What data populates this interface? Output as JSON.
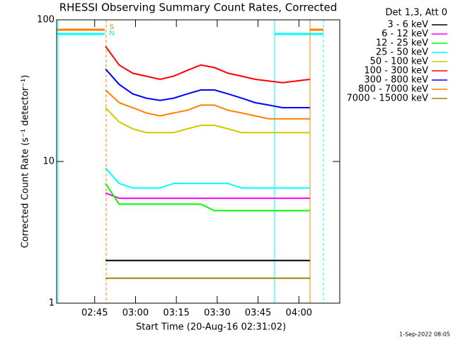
{
  "chart_data": {
    "type": "line",
    "title": "RHESSI Observing Summary Count Rates, Corrected",
    "x_label": "Start Time (20-Aug-16 02:31:02)",
    "y_label": "Corrected Count Rate (s⁻¹ detector⁻¹)",
    "legend_title": "Det 1,3, Att 0",
    "footer": "1-Sep-2022 08:05",
    "log_y": true,
    "xlim": [
      151.03,
      255
    ],
    "ylim": [
      1,
      100
    ],
    "yticks": [
      1,
      10,
      100
    ],
    "xticks": [
      {
        "value": 165,
        "label": "02:45"
      },
      {
        "value": 180,
        "label": "03:00"
      },
      {
        "value": 195,
        "label": "03:15"
      },
      {
        "value": 210,
        "label": "03:30"
      },
      {
        "value": 225,
        "label": "03:45"
      },
      {
        "value": 240,
        "label": "04:00"
      }
    ],
    "flags": [
      {
        "label": "S",
        "color": "#ff8000"
      },
      {
        "label": "N",
        "color": "#00ffff"
      }
    ],
    "x": [
      169,
      174,
      179,
      184,
      189,
      194,
      199,
      204,
      209,
      214,
      219,
      224,
      229,
      234,
      239,
      244
    ],
    "series": [
      {
        "name": "3 - 6 keV",
        "color": "#000000",
        "values": [
          2,
          2,
          2,
          2,
          2,
          2,
          2,
          2,
          2,
          2,
          2,
          2,
          2,
          2,
          2,
          2
        ]
      },
      {
        "name": "6 - 12 keV",
        "color": "#ff00ff",
        "values": [
          6,
          5.5,
          5.5,
          5.5,
          5.5,
          5.5,
          5.5,
          5.5,
          5.5,
          5.5,
          5.5,
          5.5,
          5.5,
          5.5,
          5.5,
          5.5
        ]
      },
      {
        "name": "12 - 25 keV",
        "color": "#00ff00",
        "values": [
          7,
          5,
          5,
          5,
          5,
          5,
          5,
          5,
          4.5,
          4.5,
          4.5,
          4.5,
          4.5,
          4.5,
          4.5,
          4.5
        ]
      },
      {
        "name": "25 - 50 keV",
        "color": "#00ffff",
        "values": [
          9,
          7,
          6.5,
          6.5,
          6.5,
          7,
          7,
          7,
          7,
          7,
          6.5,
          6.5,
          6.5,
          6.5,
          6.5,
          6.5
        ]
      },
      {
        "name": "50 - 100 keV",
        "color": "#cccc00",
        "values": [
          24,
          19,
          17,
          16,
          16,
          16,
          17,
          18,
          18,
          17,
          16,
          16,
          16,
          16,
          16,
          16
        ]
      },
      {
        "name": "100 - 300 keV",
        "color": "#ff0000",
        "values": [
          65,
          48,
          42,
          40,
          38,
          40,
          44,
          48,
          46,
          42,
          40,
          38,
          37,
          36,
          37,
          38
        ]
      },
      {
        "name": "300 - 800 keV",
        "color": "#0000ff",
        "values": [
          45,
          35,
          30,
          28,
          27,
          28,
          30,
          32,
          32,
          30,
          28,
          26,
          25,
          24,
          24,
          24
        ]
      },
      {
        "name": "800 - 7000 keV",
        "color": "#ff8000",
        "values": [
          32,
          26,
          24,
          22,
          21,
          22,
          23,
          25,
          25,
          23,
          22,
          21,
          20,
          20,
          20,
          20
        ]
      },
      {
        "name": "7000 - 15000 keV",
        "color": "#998800",
        "values": [
          1.5,
          1.5,
          1.5,
          1.5,
          1.5,
          1.5,
          1.5,
          1.5,
          1.5,
          1.5,
          1.5,
          1.5,
          1.5,
          1.5,
          1.5,
          1.5
        ]
      }
    ]
  }
}
